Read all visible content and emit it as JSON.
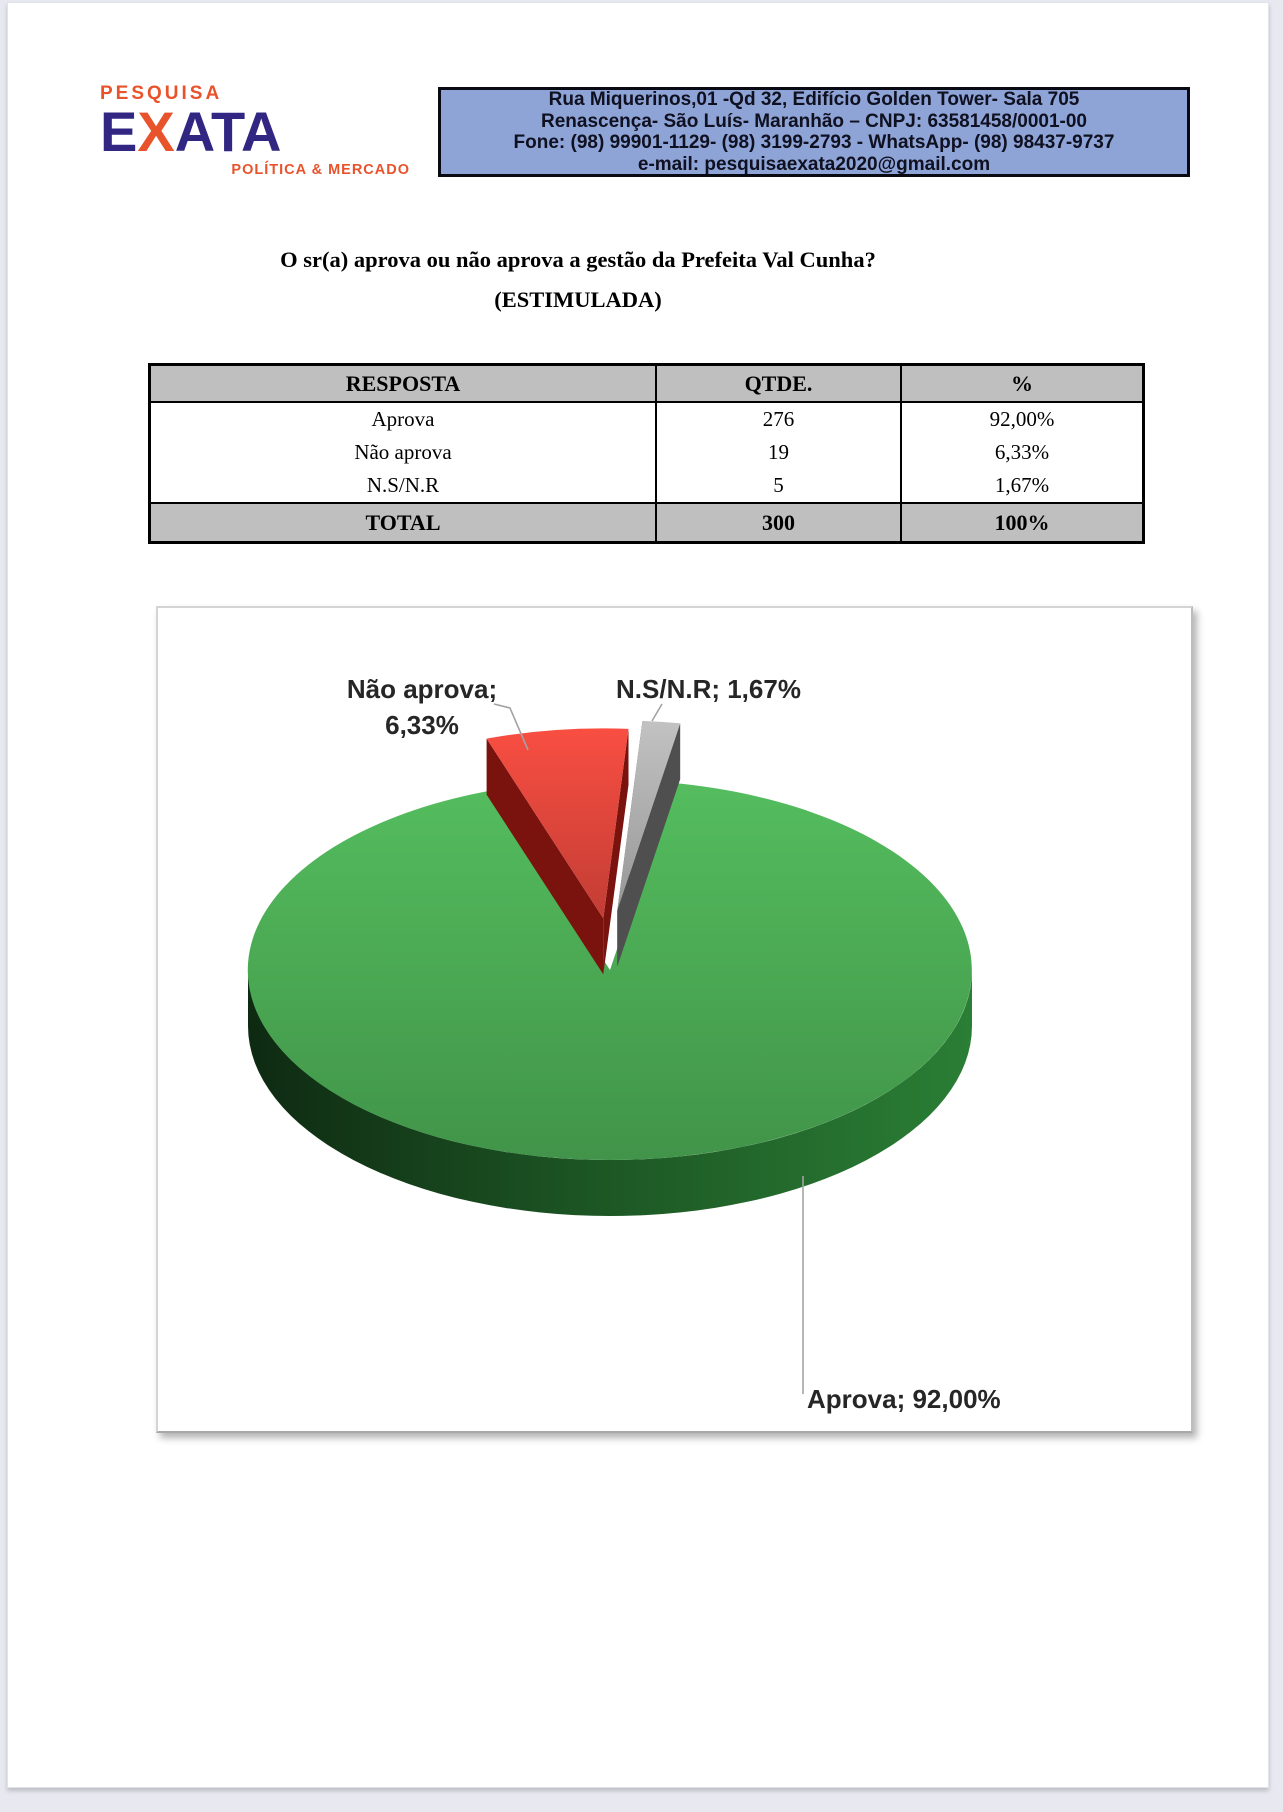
{
  "page": {
    "logo": {
      "top": "PESQUISA",
      "main_e": "E",
      "main_x": "X",
      "main_ata": "ATA",
      "bottom": "POLÍTICA & MERCADO",
      "orange": "#E8532C",
      "navy": "#312783"
    },
    "header_box": {
      "bg_color": "#8EA3D6",
      "line1": "Rua Miquerinos,01 -Qd 32,  Edifício Golden Tower- Sala 705",
      "line2": "Renascença- São Luís- Maranhão – CNPJ: 63581458/0001-00",
      "line3": "Fone: (98) 99901-1129- (98) 3199-2793 - WhatsApp- (98) 98437-9737",
      "line4": "e-mail: pesquisaexata2020@gmail.com"
    },
    "question": {
      "line1": "O sr(a) aprova ou não aprova a gestão da Prefeita Val Cunha?",
      "line2": "(ESTIMULADA)"
    }
  },
  "table": {
    "header_bg": "#BFBFBF",
    "headers": [
      "RESPOSTA",
      "QTDE.",
      "%"
    ],
    "rows": [
      [
        "Aprova",
        "276",
        "92,00%"
      ],
      [
        "Não aprova",
        "19",
        "6,33%"
      ],
      [
        "N.S/N.R",
        "5",
        "1,67%"
      ]
    ],
    "total_row": [
      "TOTAL",
      "300",
      "100%"
    ]
  },
  "chart_data": {
    "type": "pie",
    "is_3d": true,
    "legend": "none",
    "slices": [
      {
        "label": "Aprova",
        "value": 92.0,
        "pct_display": "92,00%",
        "count": 276,
        "color": "#4CAC55",
        "side_color": "#1C5423",
        "exploded": false
      },
      {
        "label": "Não aprova",
        "value": 6.33,
        "pct_display": "6,33%",
        "count": 19,
        "color": "#E2473C",
        "side_color": "#7A120D",
        "exploded": true
      },
      {
        "label": "N.S/N.R",
        "value": 1.67,
        "pct_display": "1,67%",
        "count": 5,
        "color": "#B0B0B0",
        "side_color": "#4F4F4F",
        "exploded": true
      }
    ],
    "callouts": {
      "nao_line1": "Não aprova;",
      "nao_line2": "6,33%",
      "nsnr": "N.S/N.R; 1,67%",
      "aprova": "Aprova; 92,00%"
    },
    "leader_color": "#A3A3A3"
  }
}
